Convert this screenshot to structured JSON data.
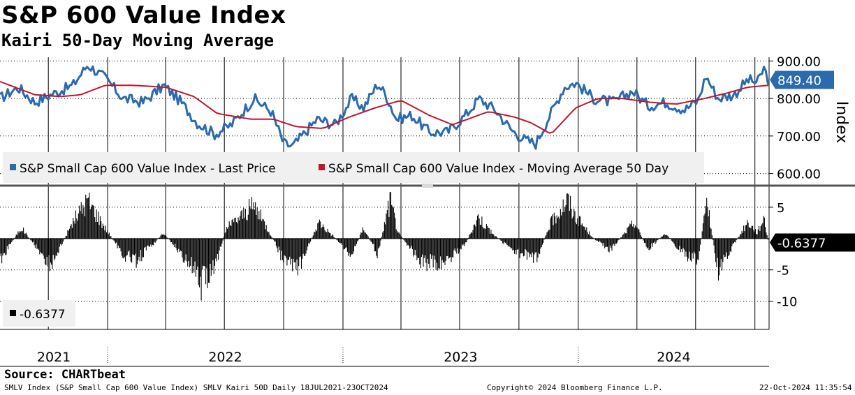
{
  "header": {
    "title": "S&P 600 Value Index",
    "subtitle": "Kairi 50-Day Moving Average"
  },
  "source_label": "Source: CHARTbeat",
  "footer": {
    "left": "SMLV Index (S&P Small Cap 600 Value Index) SMLV Kairi 50D  Daily 18JUL2021-23OCT2024",
    "center": "Copyright© 2024 Bloomberg Finance L.P.",
    "right": "22-Oct-2024 11:35:54"
  },
  "chart_data": [
    {
      "type": "line",
      "title": "S&P 600 Value Index",
      "ylabel": "Index",
      "ylim": [
        575,
        910
      ],
      "yticks": [
        600,
        700,
        800,
        900
      ],
      "ytick_labels": [
        "600.00",
        "700.00",
        "800.00",
        "900.00"
      ],
      "x_range": [
        "2021-07-18",
        "2024-10-23"
      ],
      "last_value_label": "849.40",
      "legend": [
        {
          "name": "S&P Small Cap 600 Value Index - Last Price",
          "color": "#2a6aad"
        },
        {
          "name": "S&P Small Cap 600 Value Index - Moving Average 50 Day",
          "color": "#c0172d"
        }
      ],
      "series": [
        {
          "name": "S&P Small Cap 600 Value Index - Last Price",
          "color": "#2a6aad",
          "x": [
            "2021-07-18",
            "2021-08-15",
            "2021-09-10",
            "2021-10-05",
            "2021-11-08",
            "2021-12-01",
            "2021-12-28",
            "2022-01-25",
            "2022-02-25",
            "2022-03-29",
            "2022-04-25",
            "2022-05-20",
            "2022-06-16",
            "2022-07-12",
            "2022-08-16",
            "2022-09-12",
            "2022-10-01",
            "2022-10-15",
            "2022-11-22",
            "2022-12-20",
            "2023-01-15",
            "2023-02-02",
            "2023-02-24",
            "2023-03-10",
            "2023-03-25",
            "2023-04-18",
            "2023-05-15",
            "2023-06-12",
            "2023-07-10",
            "2023-07-31",
            "2023-08-25",
            "2023-09-20",
            "2023-10-10",
            "2023-10-27",
            "2023-11-15",
            "2023-12-10",
            "2023-12-28",
            "2024-01-25",
            "2024-02-25",
            "2024-03-25",
            "2024-04-19",
            "2024-05-15",
            "2024-06-14",
            "2024-07-05",
            "2024-07-17",
            "2024-08-05",
            "2024-08-30",
            "2024-09-20",
            "2024-10-05",
            "2024-10-15",
            "2024-10-22"
          ],
          "values": [
            800,
            830,
            790,
            810,
            835,
            890,
            855,
            800,
            790,
            835,
            790,
            735,
            705,
            730,
            800,
            765,
            680,
            672,
            745,
            730,
            800,
            775,
            840,
            805,
            745,
            755,
            710,
            710,
            755,
            800,
            770,
            715,
            690,
            680,
            745,
            830,
            842,
            800,
            790,
            820,
            780,
            790,
            770,
            795,
            860,
            800,
            810,
            850,
            842,
            880,
            849.4
          ]
        },
        {
          "name": "S&P Small Cap 600 Value Index - Moving Average 50 Day",
          "color": "#c0172d",
          "x": [
            "2021-07-18",
            "2021-09-10",
            "2021-10-20",
            "2021-11-20",
            "2021-12-28",
            "2022-02-10",
            "2022-04-01",
            "2022-05-15",
            "2022-06-20",
            "2022-08-10",
            "2022-09-15",
            "2022-10-20",
            "2022-12-01",
            "2023-01-10",
            "2023-02-20",
            "2023-04-01",
            "2023-05-15",
            "2023-06-20",
            "2023-08-15",
            "2023-09-25",
            "2023-10-20",
            "2023-11-20",
            "2023-12-28",
            "2024-02-01",
            "2024-03-10",
            "2024-04-20",
            "2024-06-01",
            "2024-07-15",
            "2024-08-20",
            "2024-09-20",
            "2024-10-22"
          ],
          "values": [
            845,
            810,
            805,
            810,
            835,
            835,
            830,
            805,
            760,
            745,
            745,
            725,
            720,
            750,
            775,
            795,
            755,
            730,
            765,
            750,
            735,
            705,
            775,
            800,
            800,
            790,
            785,
            800,
            815,
            830,
            835
          ]
        }
      ]
    },
    {
      "type": "bar",
      "title": "Kairi 50-Day Moving Average",
      "ylim": [
        -14.5,
        8
      ],
      "yticks": [
        5,
        -5,
        -10
      ],
      "ytick_labels": [
        "5",
        "-5",
        "-10"
      ],
      "last_value_label": "-0.6377",
      "legend": [
        {
          "name": "-0.6377",
          "color": "#000000"
        }
      ],
      "x_range": [
        "2021-07-18",
        "2024-10-23"
      ],
      "anchors_x": [
        "2021-07-18",
        "2021-08-20",
        "2021-09-15",
        "2021-10-05",
        "2021-11-08",
        "2021-12-01",
        "2021-12-28",
        "2022-01-25",
        "2022-02-15",
        "2022-03-29",
        "2022-05-10",
        "2022-05-25",
        "2022-06-16",
        "2022-07-05",
        "2022-08-16",
        "2022-09-10",
        "2022-10-01",
        "2022-10-25",
        "2022-11-25",
        "2023-01-15",
        "2023-02-02",
        "2023-02-24",
        "2023-03-15",
        "2023-03-28",
        "2023-05-01",
        "2023-06-01",
        "2023-07-10",
        "2023-07-30",
        "2023-08-20",
        "2023-09-20",
        "2023-10-10",
        "2023-10-27",
        "2023-11-20",
        "2023-12-15",
        "2023-12-28",
        "2024-01-25",
        "2024-02-20",
        "2024-03-28",
        "2024-04-18",
        "2024-05-15",
        "2024-06-14",
        "2024-07-05",
        "2024-07-18",
        "2024-08-05",
        "2024-08-30",
        "2024-09-20",
        "2024-10-05",
        "2024-10-15",
        "2024-10-22"
      ],
      "anchors_y": [
        -4,
        2,
        -2,
        -5,
        3,
        7,
        2,
        -3,
        -4,
        1,
        -5,
        -8.5,
        -5,
        2,
        6,
        1,
        -4,
        -5,
        3,
        -3,
        2,
        -3,
        7,
        1,
        -4,
        -5,
        -1,
        4,
        1,
        -2,
        -3,
        -4,
        3,
        7,
        4,
        0,
        -2,
        3,
        -2,
        1,
        -3,
        -4,
        7,
        -6,
        -1,
        3,
        1,
        4,
        -0.6377
      ]
    }
  ]
}
